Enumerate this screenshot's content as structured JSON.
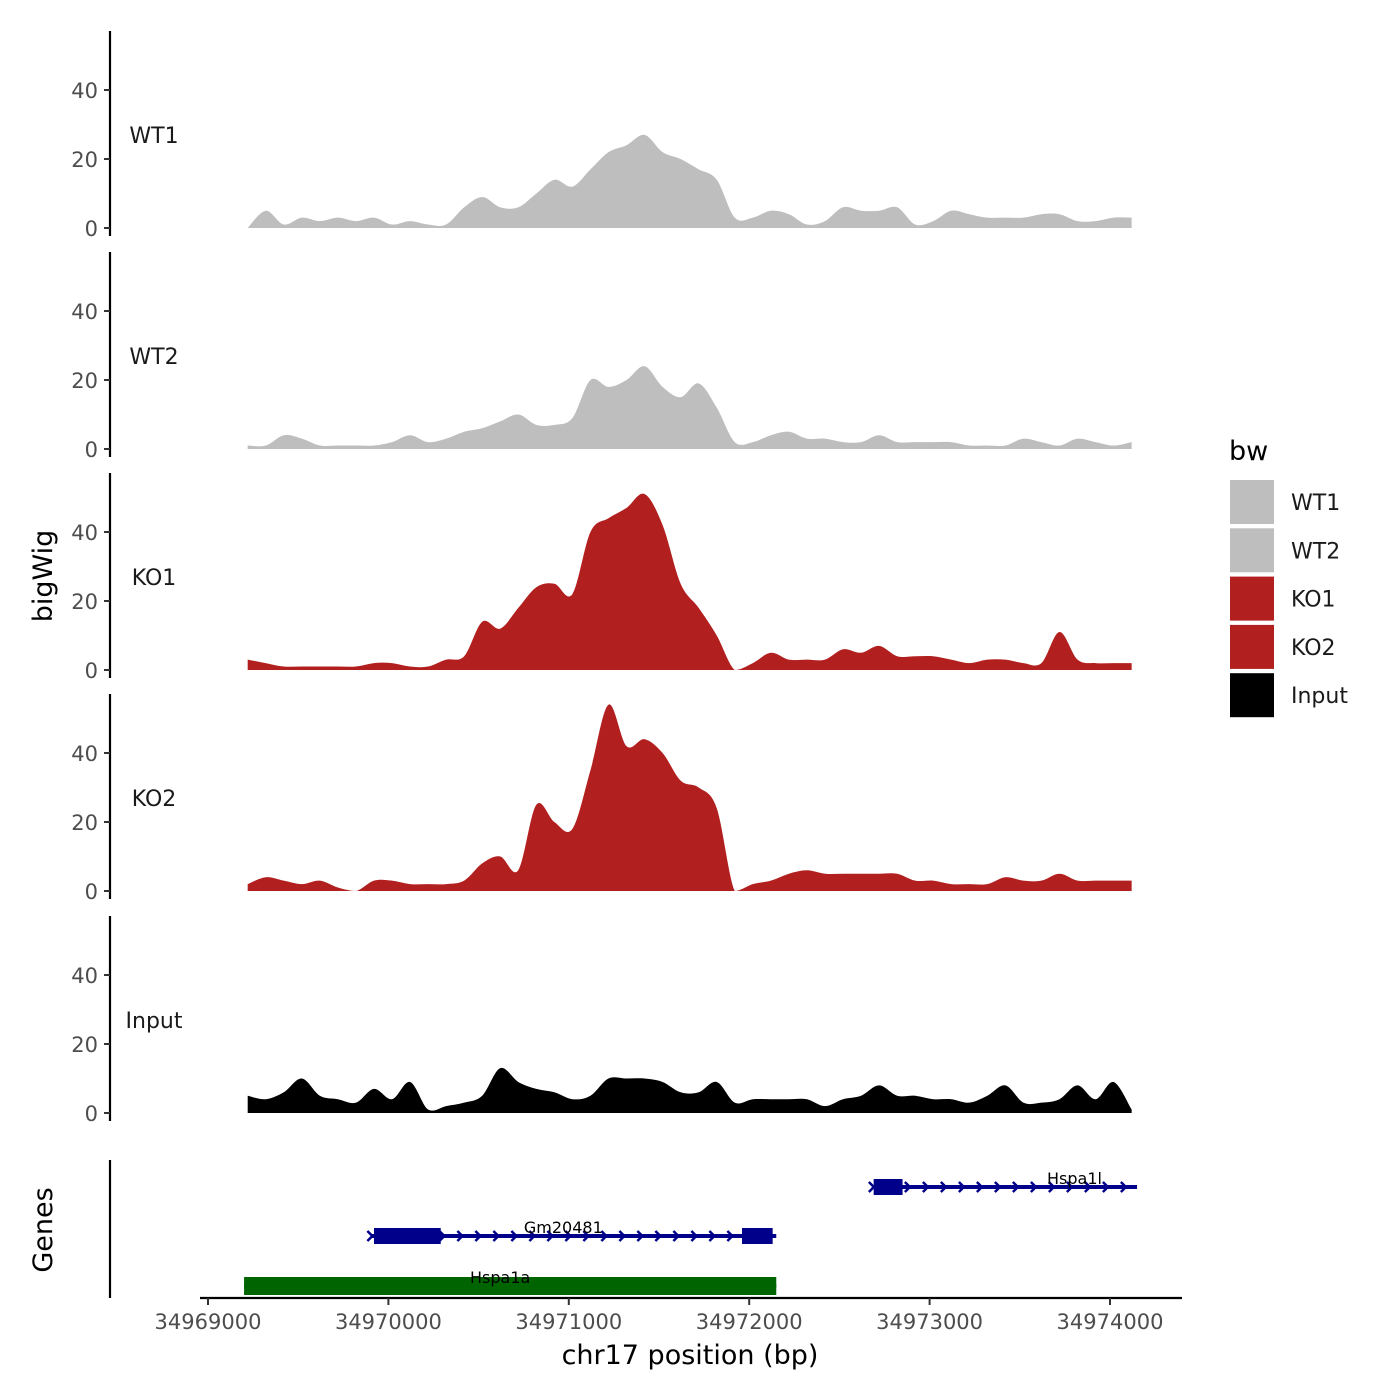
{
  "chart_data": {
    "type": "area",
    "title": "",
    "xlabel": "chr17 position (bp)",
    "ylabel": "bigWig",
    "genes_label": "Genes",
    "xlim": [
      34968990,
      34974400
    ],
    "ylim": [
      0,
      57
    ],
    "x_ticks": [
      34969000,
      34970000,
      34971000,
      34972000,
      34973000,
      34974000
    ],
    "y_ticks": [
      0,
      20,
      40
    ],
    "x_start": 34969220,
    "x_step": 100,
    "legend": {
      "title": "bw",
      "position": "right",
      "entries": [
        {
          "name": "WT1",
          "color": "#bebebe"
        },
        {
          "name": "WT2",
          "color": "#bebebe"
        },
        {
          "name": "KO1",
          "color": "#b21f1f"
        },
        {
          "name": "KO2",
          "color": "#b21f1f"
        },
        {
          "name": "Input",
          "color": "#000000"
        }
      ]
    },
    "series": [
      {
        "name": "WT1",
        "color": "#bebebe",
        "values": [
          0,
          5,
          1,
          3,
          2,
          3,
          2,
          3,
          1,
          2,
          1,
          1,
          6,
          9,
          6,
          6,
          10,
          14,
          12,
          17,
          22,
          24,
          27,
          22,
          20,
          17,
          14,
          3,
          3,
          5,
          4,
          1,
          2,
          6,
          5,
          5,
          6,
          1,
          2,
          5,
          4,
          3,
          3,
          3,
          4,
          4,
          2,
          2,
          3,
          3
        ]
      },
      {
        "name": "WT2",
        "color": "#bebebe",
        "values": [
          1,
          1,
          4,
          3,
          1,
          1,
          1,
          1,
          2,
          4,
          2,
          3,
          5,
          6,
          8,
          10,
          7,
          7,
          9,
          20,
          18,
          20,
          24,
          18,
          15,
          19,
          12,
          2,
          2,
          4,
          5,
          3,
          3,
          2,
          2,
          4,
          2,
          2,
          2,
          2,
          1,
          1,
          1,
          3,
          2,
          1,
          3,
          2,
          1,
          2
        ]
      },
      {
        "name": "KO1",
        "color": "#b21f1f",
        "values": [
          3,
          2,
          1,
          1,
          1,
          1,
          1,
          2,
          2,
          1,
          1,
          3,
          4,
          14,
          12,
          18,
          24,
          25,
          22,
          40,
          44,
          47,
          51,
          42,
          25,
          18,
          10,
          0,
          2,
          5,
          3,
          3,
          3,
          6,
          5,
          7,
          4,
          4,
          4,
          3,
          2,
          3,
          3,
          2,
          2,
          11,
          3,
          2,
          2,
          2
        ]
      },
      {
        "name": "KO2",
        "color": "#b21f1f",
        "values": [
          2,
          4,
          3,
          2,
          3,
          1,
          0,
          3,
          3,
          2,
          2,
          2,
          3,
          8,
          10,
          6,
          25,
          20,
          18,
          35,
          54,
          42,
          44,
          40,
          32,
          30,
          24,
          0,
          2,
          3,
          5,
          6,
          5,
          5,
          5,
          5,
          5,
          3,
          3,
          2,
          2,
          2,
          4,
          3,
          3,
          5,
          3,
          3,
          3,
          3
        ]
      },
      {
        "name": "Input",
        "color": "#000000",
        "values": [
          5,
          4,
          6,
          10,
          5,
          4,
          3,
          7,
          4,
          9,
          1,
          2,
          3,
          5,
          13,
          9,
          7,
          6,
          4,
          5,
          10,
          10,
          10,
          9,
          6,
          6,
          9,
          3,
          4,
          4,
          4,
          4,
          2,
          4,
          5,
          8,
          5,
          5,
          4,
          4,
          3,
          5,
          8,
          3,
          3,
          4,
          8,
          4,
          9,
          1
        ]
      }
    ],
    "genes": [
      {
        "name": "Hspa1l",
        "color": "#00008b",
        "start": 34972680,
        "end": 34974150,
        "row": 0,
        "exons": [
          [
            34972690,
            34972850
          ]
        ],
        "strand": "+"
      },
      {
        "name": "Gm20481",
        "color": "#00008b",
        "start": 34969900,
        "end": 34972150,
        "row": 1,
        "exons": [
          [
            34969920,
            34970290
          ],
          [
            34971960,
            34972130
          ]
        ],
        "strand": "+"
      },
      {
        "name": "Hspa1a",
        "color": "#006400",
        "start": 34969200,
        "end": 34972150,
        "row": 2,
        "exons": [
          [
            34969200,
            34972150
          ]
        ],
        "strand": "+"
      }
    ]
  }
}
